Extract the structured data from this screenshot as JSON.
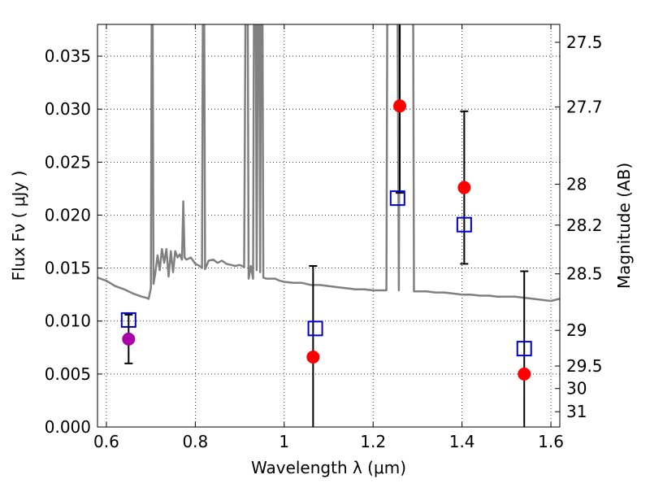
{
  "chart_data": {
    "type": "scatter",
    "xlabel": "Wavelength  λ (μm)",
    "ylabel": "Flux  Fν  ( μJy )",
    "y2label": "Magnitude (AB)",
    "xlim": [
      0.58,
      1.62
    ],
    "ylim": [
      0.0,
      0.038
    ],
    "grid": true,
    "x_ticks": [
      0.6,
      0.8,
      1.0,
      1.2,
      1.4,
      1.6
    ],
    "x_tick_labels": [
      "0.6",
      "0.8",
      "1",
      "1.2",
      "1.4",
      "1.6"
    ],
    "y_ticks": [
      0.0,
      0.005,
      0.01,
      0.015,
      0.02,
      0.025,
      0.03,
      0.035
    ],
    "y_tick_labels": [
      "0.000",
      "0.005",
      "0.010",
      "0.015",
      "0.020",
      "0.025",
      "0.030",
      "0.035"
    ],
    "mag_ticks": [
      27.5,
      27.7,
      28.0,
      28.2,
      28.5,
      29.0,
      29.5,
      30.0,
      31.0
    ],
    "mag_tick_labels": [
      "27.5",
      "27.7",
      "28",
      "28.2",
      "28.5",
      "29",
      "29.5",
      "30",
      "31"
    ],
    "colors": {
      "spectrum": "#808080",
      "observed": "#ff0000",
      "observed_first": "#aa00aa",
      "model": "#0000cc",
      "errorbar": "#000000"
    },
    "spectrum": [
      [
        0.58,
        0.0141
      ],
      [
        0.6,
        0.0138
      ],
      [
        0.62,
        0.0133
      ],
      [
        0.64,
        0.013
      ],
      [
        0.66,
        0.0126
      ],
      [
        0.68,
        0.0123
      ],
      [
        0.69,
        0.0122
      ],
      [
        0.695,
        0.0121
      ],
      [
        0.7,
        0.0131
      ],
      [
        0.702,
        0.04
      ],
      [
        0.704,
        0.04
      ],
      [
        0.706,
        0.0135
      ],
      [
        0.71,
        0.0145
      ],
      [
        0.715,
        0.0162
      ],
      [
        0.72,
        0.0148
      ],
      [
        0.725,
        0.0168
      ],
      [
        0.73,
        0.0155
      ],
      [
        0.735,
        0.0168
      ],
      [
        0.74,
        0.0142
      ],
      [
        0.745,
        0.0166
      ],
      [
        0.75,
        0.0146
      ],
      [
        0.755,
        0.0166
      ],
      [
        0.76,
        0.016
      ],
      [
        0.765,
        0.0163
      ],
      [
        0.77,
        0.0158
      ],
      [
        0.773,
        0.0213
      ],
      [
        0.776,
        0.016
      ],
      [
        0.78,
        0.0158
      ],
      [
        0.79,
        0.016
      ],
      [
        0.8,
        0.0154
      ],
      [
        0.81,
        0.0152
      ],
      [
        0.815,
        0.015
      ],
      [
        0.817,
        0.04
      ],
      [
        0.82,
        0.04
      ],
      [
        0.822,
        0.0149
      ],
      [
        0.83,
        0.0157
      ],
      [
        0.84,
        0.0158
      ],
      [
        0.85,
        0.0155
      ],
      [
        0.86,
        0.0157
      ],
      [
        0.87,
        0.0154
      ],
      [
        0.88,
        0.0153
      ],
      [
        0.89,
        0.0152
      ],
      [
        0.9,
        0.0153
      ],
      [
        0.91,
        0.0151
      ],
      [
        0.913,
        0.04
      ],
      [
        0.918,
        0.04
      ],
      [
        0.92,
        0.014
      ],
      [
        0.925,
        0.0152
      ],
      [
        0.93,
        0.014
      ],
      [
        0.932,
        0.04
      ],
      [
        0.936,
        0.04
      ],
      [
        0.938,
        0.0148
      ],
      [
        0.941,
        0.04
      ],
      [
        0.944,
        0.04
      ],
      [
        0.946,
        0.0146
      ],
      [
        0.948,
        0.04
      ],
      [
        0.951,
        0.04
      ],
      [
        0.953,
        0.0141
      ],
      [
        0.96,
        0.014
      ],
      [
        0.97,
        0.014
      ],
      [
        0.98,
        0.014
      ],
      [
        0.99,
        0.0138
      ],
      [
        1.0,
        0.0137
      ],
      [
        1.02,
        0.0136
      ],
      [
        1.04,
        0.0136
      ],
      [
        1.06,
        0.0134
      ],
      [
        1.08,
        0.0134
      ],
      [
        1.1,
        0.0133
      ],
      [
        1.12,
        0.0132
      ],
      [
        1.14,
        0.0131
      ],
      [
        1.16,
        0.013
      ],
      [
        1.18,
        0.013
      ],
      [
        1.2,
        0.0129
      ],
      [
        1.22,
        0.0129
      ],
      [
        1.23,
        0.0129
      ],
      [
        1.232,
        0.04
      ],
      [
        1.255,
        0.04
      ],
      [
        1.258,
        0.0129
      ],
      [
        1.26,
        0.04
      ],
      [
        1.29,
        0.04
      ],
      [
        1.292,
        0.0128
      ],
      [
        1.3,
        0.0128
      ],
      [
        1.32,
        0.0128
      ],
      [
        1.34,
        0.0127
      ],
      [
        1.36,
        0.0127
      ],
      [
        1.38,
        0.0126
      ],
      [
        1.4,
        0.0125
      ],
      [
        1.42,
        0.0125
      ],
      [
        1.44,
        0.0124
      ],
      [
        1.46,
        0.0124
      ],
      [
        1.48,
        0.0123
      ],
      [
        1.5,
        0.0123
      ],
      [
        1.52,
        0.0123
      ],
      [
        1.54,
        0.0122
      ],
      [
        1.56,
        0.0121
      ],
      [
        1.58,
        0.012
      ],
      [
        1.6,
        0.0119
      ],
      [
        1.62,
        0.0121
      ]
    ],
    "observed": [
      {
        "x": 0.65,
        "y": 0.0083,
        "err": 0.0023
      },
      {
        "x": 1.065,
        "y": 0.0066,
        "err": 0.0086
      },
      {
        "x": 1.26,
        "y": 0.0303,
        "err": 0.0082
      },
      {
        "x": 1.405,
        "y": 0.0226,
        "err": 0.0072
      },
      {
        "x": 1.54,
        "y": 0.005,
        "err": 0.0097
      }
    ],
    "model": [
      {
        "x": 0.65,
        "y": 0.0101
      },
      {
        "x": 1.07,
        "y": 0.0093
      },
      {
        "x": 1.255,
        "y": 0.0216
      },
      {
        "x": 1.405,
        "y": 0.0191
      },
      {
        "x": 1.54,
        "y": 0.0074
      }
    ]
  }
}
